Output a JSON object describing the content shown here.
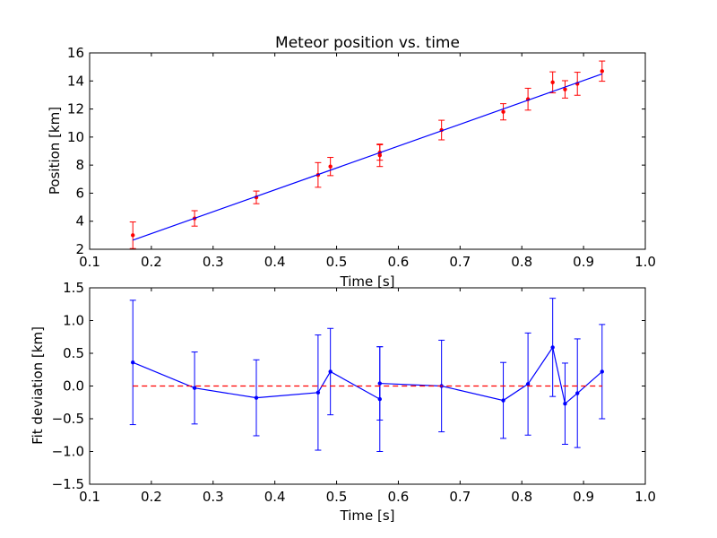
{
  "chart_data": [
    {
      "type": "scatter",
      "title": "Meteor position vs. time",
      "xlabel": "Time [s]",
      "ylabel": "Position [km]",
      "xlim": [
        0.1,
        1.0
      ],
      "ylim": [
        2,
        16
      ],
      "xticks": [
        0.1,
        0.2,
        0.3,
        0.4,
        0.5,
        0.6,
        0.7,
        0.8,
        0.9,
        1.0
      ],
      "xtick_labels": [
        "0.1",
        "0.2",
        "0.3",
        "0.4",
        "0.5",
        "0.6",
        "0.7",
        "0.8",
        "0.9",
        "1.0"
      ],
      "yticks": [
        2,
        4,
        6,
        8,
        10,
        12,
        14,
        16
      ],
      "ytick_labels": [
        "2",
        "4",
        "6",
        "8",
        "10",
        "12",
        "14",
        "16"
      ],
      "grid": false,
      "series": [
        {
          "kind": "errorbar_points",
          "color": "#ff0000",
          "x": [
            0.17,
            0.27,
            0.37,
            0.47,
            0.49,
            0.57,
            0.57,
            0.67,
            0.77,
            0.81,
            0.85,
            0.87,
            0.89,
            0.93
          ],
          "y": [
            3.0,
            4.2,
            5.7,
            7.3,
            7.9,
            8.9,
            8.7,
            10.5,
            11.8,
            12.7,
            13.9,
            13.4,
            13.8,
            14.7
          ],
          "yerr": [
            0.95,
            0.55,
            0.45,
            0.88,
            0.65,
            0.55,
            0.8,
            0.7,
            0.58,
            0.78,
            0.75,
            0.62,
            0.82,
            0.72
          ]
        },
        {
          "kind": "fit_line",
          "color": "#0000ff",
          "x": [
            0.17,
            0.93
          ],
          "y": [
            2.65,
            14.5
          ]
        }
      ]
    },
    {
      "type": "line",
      "title": "",
      "xlabel": "Time [s]",
      "ylabel": "Fit deviation [km]",
      "xlim": [
        0.1,
        1.0
      ],
      "ylim": [
        -1.5,
        1.5
      ],
      "xticks": [
        0.1,
        0.2,
        0.3,
        0.4,
        0.5,
        0.6,
        0.7,
        0.8,
        0.9,
        1.0
      ],
      "xtick_labels": [
        "0.1",
        "0.2",
        "0.3",
        "0.4",
        "0.5",
        "0.6",
        "0.7",
        "0.8",
        "0.9",
        "1.0"
      ],
      "yticks": [
        -1.5,
        -1.0,
        -0.5,
        0.0,
        0.5,
        1.0,
        1.5
      ],
      "ytick_labels": [
        "−1.5",
        "−1.0",
        "−0.5",
        "0.0",
        "0.5",
        "1.0",
        "1.5"
      ],
      "grid": false,
      "series": [
        {
          "kind": "errorbar_line",
          "color": "#0000ff",
          "x": [
            0.17,
            0.27,
            0.37,
            0.47,
            0.49,
            0.57,
            0.57,
            0.67,
            0.77,
            0.81,
            0.85,
            0.87,
            0.89,
            0.93
          ],
          "y": [
            0.36,
            -0.03,
            -0.18,
            -0.1,
            0.22,
            -0.2,
            0.04,
            0.0,
            -0.22,
            0.03,
            0.59,
            -0.27,
            -0.11,
            0.22
          ],
          "yerr": [
            0.95,
            0.55,
            0.58,
            0.88,
            0.66,
            0.8,
            0.56,
            0.7,
            0.58,
            0.78,
            0.75,
            0.62,
            0.83,
            0.72
          ]
        },
        {
          "kind": "reference_line",
          "color": "#ff0000",
          "style": "dashed",
          "x": [
            0.17,
            0.93
          ],
          "y": [
            0.0,
            0.0
          ]
        }
      ]
    }
  ]
}
